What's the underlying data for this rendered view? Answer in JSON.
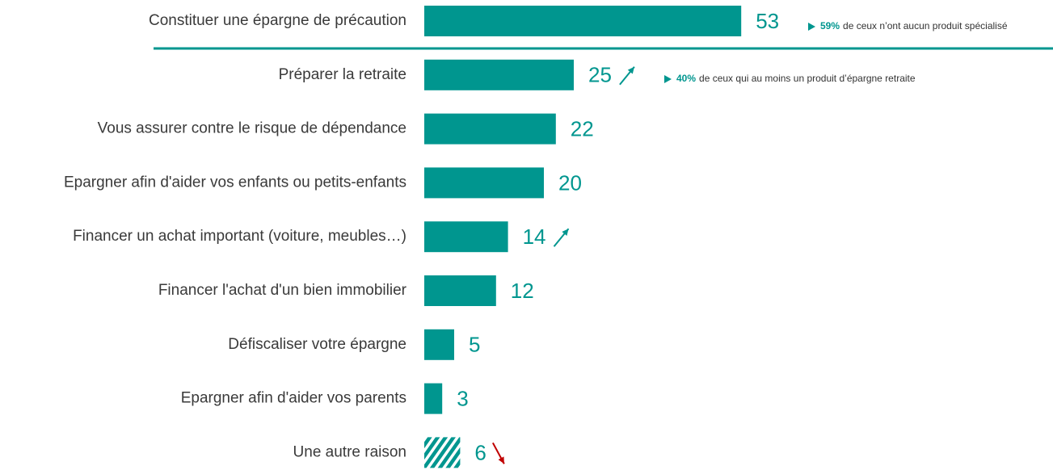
{
  "chart_data": {
    "type": "bar",
    "orientation": "horizontal",
    "categories": [
      "Constituer une épargne de précaution",
      "Préparer la retraite",
      "Vous assurer contre le risque de dépendance",
      "Epargner afin d'aider vos enfants ou petits-enfants",
      "Financer un achat important (voiture, meubles…)",
      "Financer l'achat d'un bien immobilier",
      "Défiscaliser votre épargne",
      "Epargner afin d'aider vos parents",
      "Une autre raison"
    ],
    "values": [
      53,
      25,
      22,
      20,
      14,
      12,
      5,
      3,
      6
    ],
    "color": "#00968f",
    "hatched": [
      false,
      false,
      false,
      false,
      false,
      false,
      false,
      false,
      true
    ],
    "trends": [
      null,
      "up",
      null,
      null,
      "up",
      null,
      null,
      null,
      "down"
    ],
    "trend_colors": {
      "up": "#00968f",
      "down": "#c00000"
    },
    "annotations": [
      {
        "emphasis": "59%",
        "text": "de ceux n’ont aucun produit spécialisé"
      },
      {
        "emphasis": "40%",
        "text": "de ceux qui au moins un produit d’épargne retraite"
      }
    ]
  }
}
